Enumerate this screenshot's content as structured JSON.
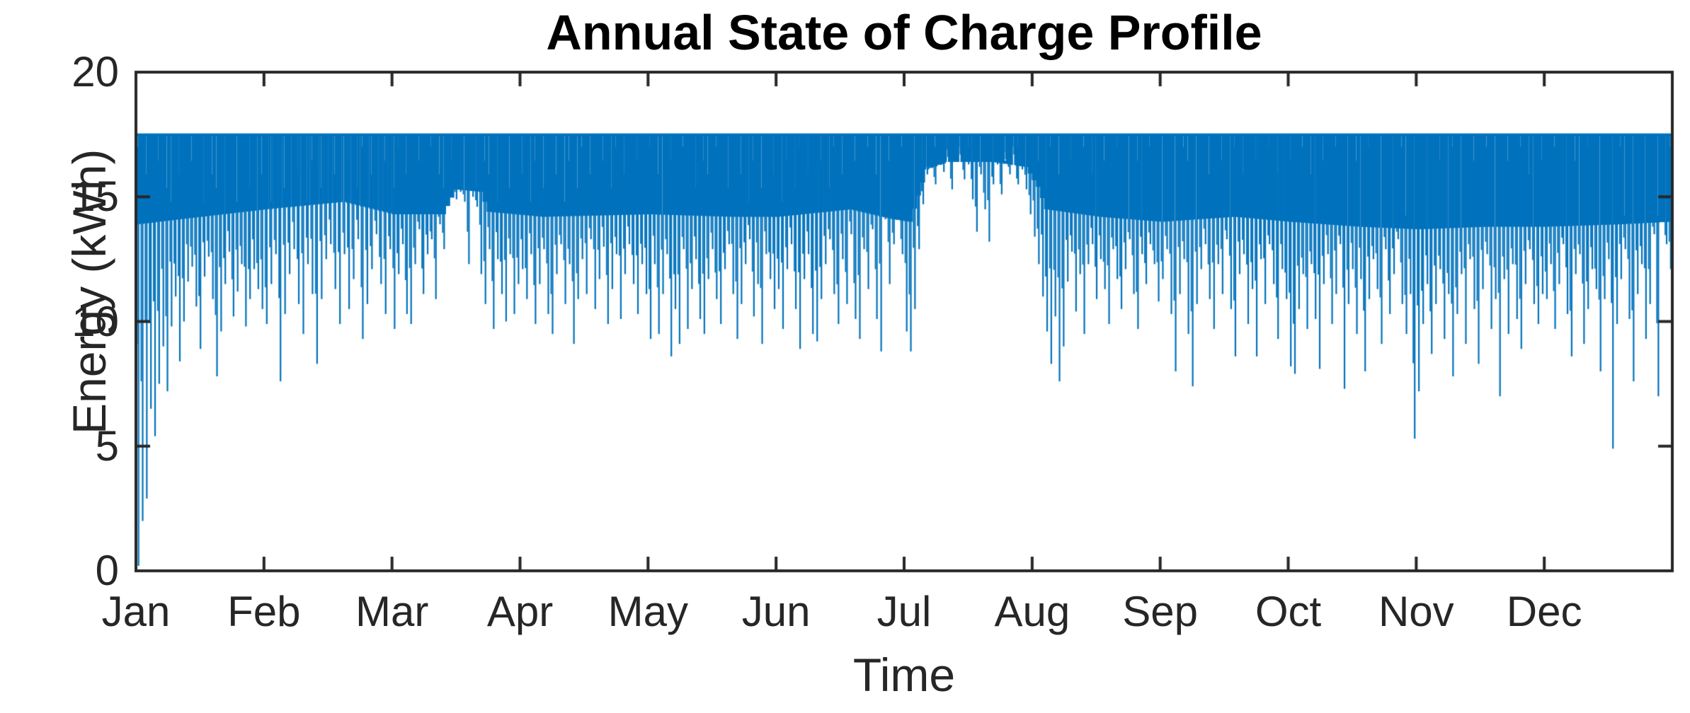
{
  "figure": {
    "title": "Annual State of Charge Profile",
    "xlabel": "Time",
    "ylabel": "Energy (kWh)"
  },
  "colors": {
    "line": "#0072BD",
    "axis": "#262626",
    "tick_text": "#262626",
    "label_text": "#262626",
    "title_text": "#000000",
    "background": "#ffffff"
  },
  "chart_data": {
    "type": "line",
    "title": "Annual State of Charge Profile",
    "xlabel": "Time",
    "ylabel": "Energy (kWh)",
    "ylim": [
      0,
      20
    ],
    "yticks": [
      0,
      5,
      10,
      15,
      20
    ],
    "xtick_labels": [
      "Jan",
      "Feb",
      "Mar",
      "Apr",
      "May",
      "Jun",
      "Jul",
      "Aug",
      "Sep",
      "Oct",
      "Nov",
      "Dec"
    ],
    "month_days": [
      31,
      28,
      31,
      30,
      31,
      30,
      31,
      31,
      30,
      31,
      30,
      31
    ],
    "grid": false,
    "box": true,
    "tick_dir": "in",
    "legend": "none",
    "plateau_kwh": 17.5,
    "daily_min_kwh": [
      0.2,
      2.0,
      2.9,
      6.5,
      5.4,
      7.5,
      9.0,
      7.2,
      9.8,
      11.0,
      8.4,
      10.0,
      11.6,
      12.2,
      10.6,
      8.9,
      11.8,
      12.6,
      10.9,
      7.8,
      9.6,
      11.5,
      12.8,
      10.2,
      11.2,
      12.3,
      9.8,
      10.9,
      12.1,
      11.3,
      10.5,
      9.9,
      11.5,
      12.7,
      7.6,
      10.3,
      11.9,
      12.9,
      10.7,
      9.5,
      12.3,
      11.1,
      8.3,
      10.9,
      12.5,
      13.1,
      11.3,
      9.9,
      12.7,
      10.5,
      11.7,
      13.3,
      9.3,
      10.7,
      12.1,
      13.5,
      11.5,
      10.3,
      12.9,
      9.7,
      11.9,
      13.1,
      10.3,
      9.9,
      12.3,
      13.7,
      11.1,
      12.7,
      13.3,
      10.9,
      13.9,
      12.9,
      14.7,
      15.1,
      14.9,
      15.2,
      14.8,
      12.3,
      15.0,
      14.6,
      11.9,
      10.7,
      12.9,
      9.7,
      12.5,
      11.1,
      10.0,
      12.7,
      10.3,
      11.5,
      12.1,
      10.9,
      12.7,
      9.9,
      11.5,
      12.9,
      10.3,
      9.5,
      11.9,
      13.1,
      10.7,
      12.3,
      9.1,
      10.9,
      12.5,
      11.1,
      13.3,
      10.5,
      11.7,
      13.0,
      9.9,
      11.3,
      12.7,
      10.1,
      11.9,
      13.1,
      11.5,
      10.3,
      12.3,
      11.1,
      9.3,
      12.3,
      9.5,
      11.1,
      12.7,
      8.6,
      10.5,
      9.1,
      12.9,
      9.7,
      11.3,
      12.5,
      10.1,
      9.5,
      11.7,
      12.9,
      10.9,
      9.9,
      12.1,
      13.1,
      11.1,
      9.3,
      10.7,
      12.3,
      13.3,
      10.2,
      11.5,
      9.1,
      12.7,
      11.7,
      10.5,
      11.3,
      9.7,
      12.1,
      13.1,
      10.5,
      8.9,
      11.7,
      12.7,
      9.5,
      9.2,
      10.9,
      12.3,
      13.3,
      11.1,
      9.9,
      12.5,
      10.7,
      13.5,
      10.1,
      9.3,
      12.9,
      11.3,
      13.7,
      10.1,
      8.8,
      14.1,
      11.5,
      13.1,
      14.5,
      12.7,
      9.6,
      8.8,
      10.5,
      12.9,
      14.7,
      15.9,
      16.3,
      15.5,
      16.5,
      16.0,
      16.6,
      15.3,
      16.4,
      16.7,
      15.7,
      16.3,
      14.9,
      13.6,
      15.9,
      14.5,
      13.2,
      15.5,
      16.3,
      15.1,
      16.5,
      15.9,
      16.7,
      15.5,
      16.1,
      15.3,
      14.3,
      13.4,
      12.3,
      11.0,
      9.6,
      8.3,
      10.2,
      7.6,
      9.0,
      11.6,
      12.8,
      10.4,
      11.9,
      9.5,
      12.3,
      13.1,
      10.9,
      12.5,
      11.3,
      9.9,
      12.9,
      11.7,
      10.5,
      12.1,
      13.3,
      11.1,
      9.7,
      12.7,
      11.5,
      13.1,
      12.3,
      10.8,
      11.7,
      12.9,
      10.3,
      8.0,
      11.1,
      12.5,
      9.5,
      7.4,
      10.7,
      12.1,
      13.1,
      10.9,
      9.7,
      12.3,
      11.1,
      13.3,
      10.5,
      8.6,
      11.9,
      12.7,
      9.9,
      11.3,
      8.6,
      12.5,
      10.7,
      13.1,
      11.5,
      9.3,
      12.1,
      10.9,
      8.2,
      7.9,
      10.5,
      11.9,
      9.7,
      12.3,
      10.1,
      8.1,
      11.5,
      12.7,
      9.9,
      11.1,
      13.1,
      7.3,
      10.7,
      12.1,
      9.5,
      11.7,
      8.0,
      10.9,
      12.5,
      11.3,
      9.1,
      12.9,
      10.3,
      11.9,
      13.3,
      10.7,
      9.5,
      11.1,
      5.3,
      7.2,
      9.9,
      11.5,
      8.7,
      10.7,
      12.1,
      9.3,
      11.1,
      7.8,
      10.3,
      11.9,
      9.1,
      12.5,
      10.5,
      8.3,
      11.3,
      12.7,
      9.7,
      10.9,
      7.0,
      11.7,
      9.5,
      12.3,
      10.1,
      8.9,
      11.5,
      12.9,
      10.7,
      9.9,
      11.1,
      10.9,
      12.3,
      9.7,
      11.5,
      13.1,
      10.3,
      8.6,
      11.9,
      12.7,
      9.1,
      10.5,
      12.1,
      11.3,
      8.0,
      10.9,
      12.5,
      4.9,
      9.9,
      11.7,
      12.9,
      10.1,
      7.6,
      11.1,
      12.3,
      9.3,
      10.7,
      13.5,
      7.0,
      14.3,
      13.1,
      12.1
    ],
    "band_bottom_ctrl": [
      [
        0,
        13.9
      ],
      [
        10,
        14.1
      ],
      [
        31,
        14.5
      ],
      [
        48,
        14.8
      ],
      [
        59,
        14.3
      ],
      [
        71,
        14.3
      ],
      [
        74,
        15.3
      ],
      [
        80,
        15.2
      ],
      [
        82,
        14.4
      ],
      [
        95,
        14.2
      ],
      [
        120,
        14.3
      ],
      [
        140,
        14.2
      ],
      [
        151,
        14.2
      ],
      [
        168,
        14.5
      ],
      [
        178,
        14.1
      ],
      [
        182,
        14.0
      ],
      [
        186,
        16.1
      ],
      [
        191,
        16.4
      ],
      [
        202,
        16.4
      ],
      [
        210,
        16.2
      ],
      [
        213,
        15.4
      ],
      [
        215,
        14.5
      ],
      [
        228,
        14.2
      ],
      [
        243,
        14.0
      ],
      [
        260,
        14.2
      ],
      [
        273,
        14.0
      ],
      [
        290,
        13.8
      ],
      [
        304,
        13.7
      ],
      [
        320,
        13.8
      ],
      [
        334,
        13.8
      ],
      [
        352,
        13.9
      ],
      [
        364,
        14.0
      ]
    ]
  }
}
